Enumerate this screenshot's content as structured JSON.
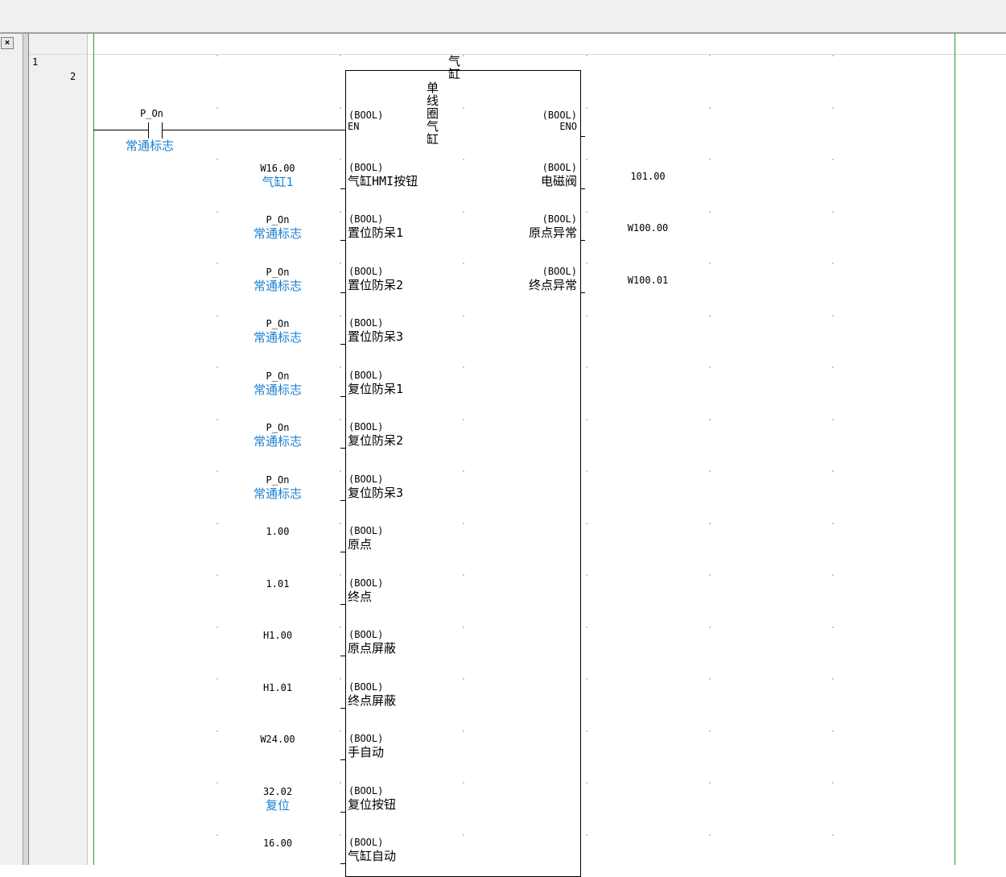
{
  "rung": {
    "line1": "1",
    "line2": "2"
  },
  "contact": {
    "address": "P_On",
    "comment": "常通标志"
  },
  "block": {
    "instance": "气缸",
    "type": "单线圈气缸",
    "pin_type": "(BOOL)"
  },
  "inputs": [
    {
      "pin": "EN",
      "address": "",
      "comment": ""
    },
    {
      "pin": "气缸HMI按钮",
      "address": "W16.00",
      "comment": "气缸1"
    },
    {
      "pin": "置位防呆1",
      "address": "P_On",
      "comment": "常通标志"
    },
    {
      "pin": "置位防呆2",
      "address": "P_On",
      "comment": "常通标志"
    },
    {
      "pin": "置位防呆3",
      "address": "P_On",
      "comment": "常通标志"
    },
    {
      "pin": "复位防呆1",
      "address": "P_On",
      "comment": "常通标志"
    },
    {
      "pin": "复位防呆2",
      "address": "P_On",
      "comment": "常通标志"
    },
    {
      "pin": "复位防呆3",
      "address": "P_On",
      "comment": "常通标志"
    },
    {
      "pin": "原点",
      "address": "1.00",
      "comment": ""
    },
    {
      "pin": "终点",
      "address": "1.01",
      "comment": ""
    },
    {
      "pin": "原点屏蔽",
      "address": "H1.00",
      "comment": ""
    },
    {
      "pin": "终点屏蔽",
      "address": "H1.01",
      "comment": ""
    },
    {
      "pin": "手自动",
      "address": "W24.00",
      "comment": ""
    },
    {
      "pin": "复位按钮",
      "address": "32.02",
      "comment": "复位"
    },
    {
      "pin": "气缸自动",
      "address": "16.00",
      "comment": ""
    }
  ],
  "outputs": [
    {
      "pin": "ENO",
      "address": ""
    },
    {
      "pin": "电磁阀",
      "address": "101.00"
    },
    {
      "pin": "原点异常",
      "address": "W100.00"
    },
    {
      "pin": "终点异常",
      "address": "W100.01"
    }
  ],
  "colors": {
    "rail": "#2a9a2a",
    "comment": "#1a7fd0"
  }
}
